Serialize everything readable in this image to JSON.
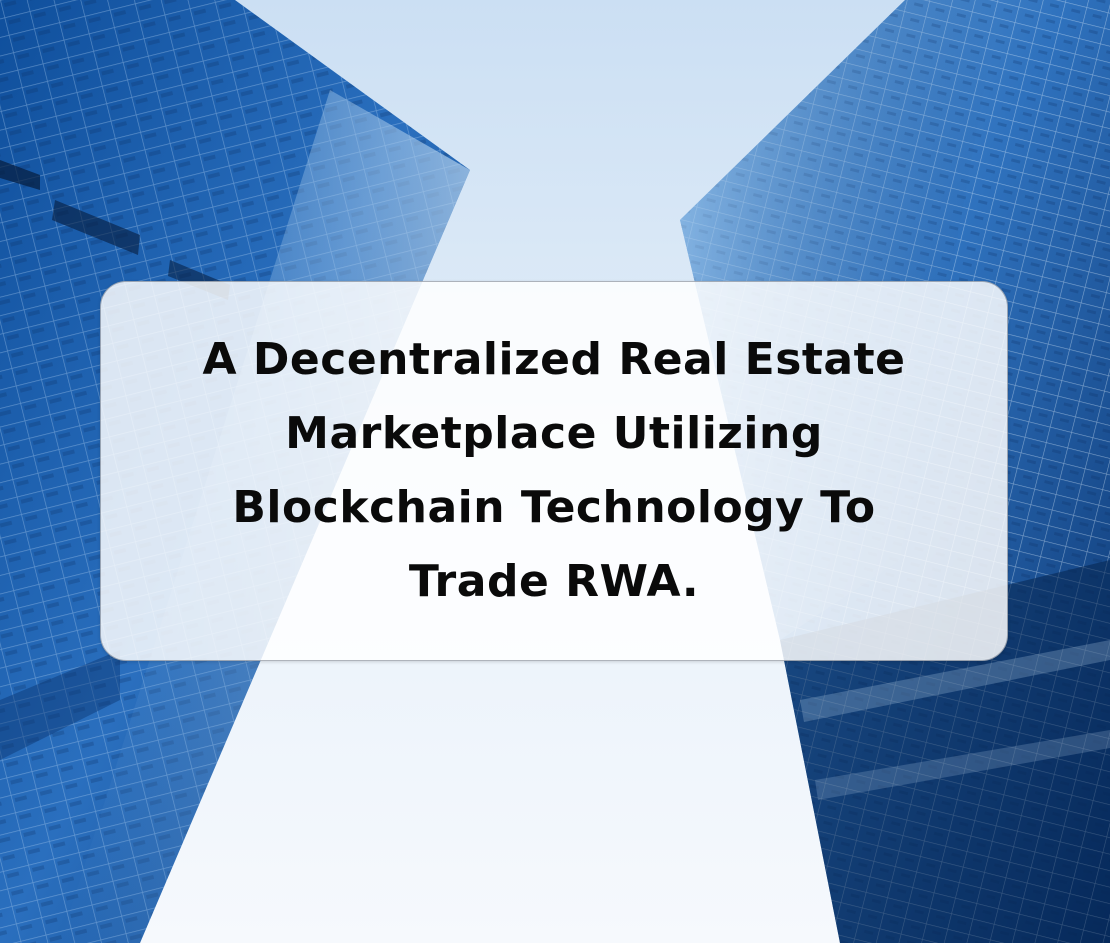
{
  "background": {
    "description_icon": "skyscrapers-photo",
    "sky_color_top": "#cfe2f5",
    "sky_color_bottom": "#f4f8fd",
    "glass_color_light": "#3f86cf",
    "glass_color_dark": "#0c3f86"
  },
  "card": {
    "lines": [
      "A Decentralized Real Estate",
      "Marketplace Utilizing",
      "Blockchain Technology To",
      "Trade RWA."
    ]
  }
}
